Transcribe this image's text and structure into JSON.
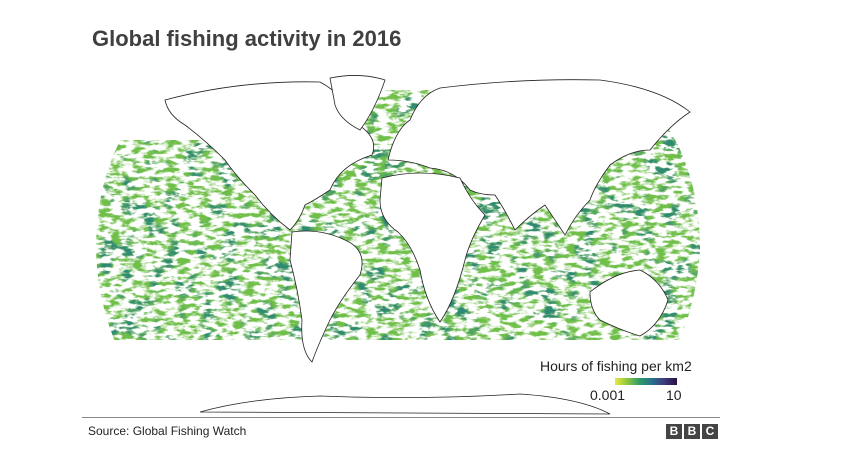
{
  "header": {
    "title": "Global fishing activity in 2016"
  },
  "legend": {
    "title": "Hours of fishing per km2",
    "min_label": "0.001",
    "max_label": "10"
  },
  "footer": {
    "source": "Source: Global Fishing Watch",
    "logo": [
      "B",
      "B",
      "C"
    ]
  }
}
